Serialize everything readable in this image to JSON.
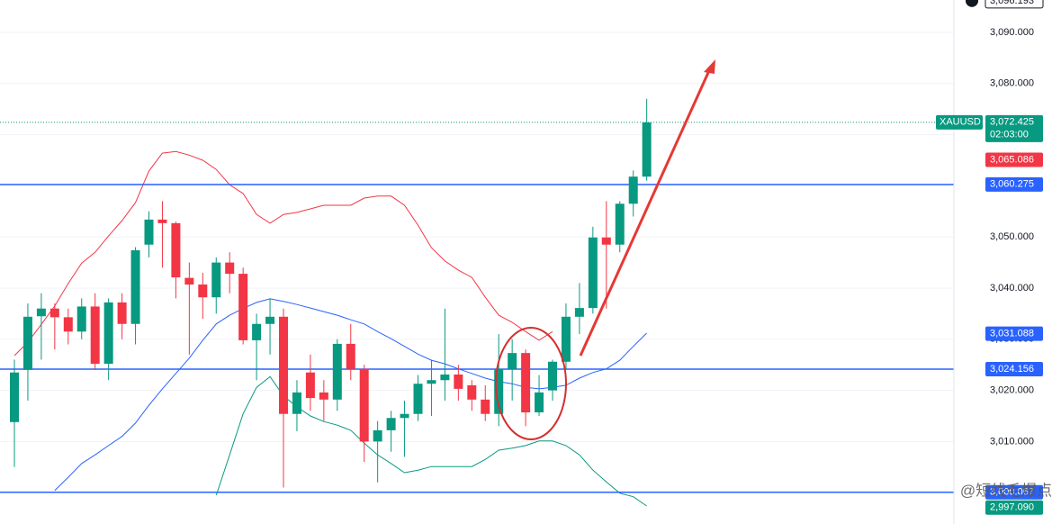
{
  "chart_data": {
    "type": "candlestick",
    "symbol": "XAUUSD",
    "up_color": "#089981",
    "down_color": "#f23645",
    "open": [
      3013.8,
      3024,
      3034.5,
      3036,
      3034.3,
      3031.5,
      3036.4,
      3025.2,
      3037.2,
      3033,
      3048.5,
      3053.4,
      3052.7,
      3042,
      3040.7,
      3038.2,
      3045,
      3042.8,
      3029.8,
      3033,
      3034.4,
      3015.4,
      3023.5,
      3019.6,
      3018.2,
      3029.1,
      3024.2,
      3010,
      3012.2,
      3014.6,
      3015.4,
      3021.3,
      3022,
      3023.1,
      3021,
      3018.2,
      3015.4,
      3024.2,
      3027.3,
      3015.7,
      3020,
      3025.6,
      3034.4,
      3036.1,
      3049.9,
      3048.5,
      3056.5,
      3061.8
    ],
    "high": [
      3026,
      3037,
      3039,
      3037,
      3036,
      3038,
      3039,
      3038,
      3039,
      3048,
      3055,
      3057,
      3053,
      3045,
      3043,
      3046,
      3047,
      3044,
      3035,
      3038,
      3036,
      3022,
      3027,
      3022,
      3030,
      3033,
      3025,
      3014,
      3016,
      3018,
      3023,
      3026,
      3036,
      3025,
      3022,
      3021,
      3031,
      3030,
      3028,
      3023,
      3026,
      3037,
      3041,
      3052,
      3057,
      3057,
      3063,
      3077
    ],
    "low": [
      3005,
      3018,
      3026,
      3028,
      3029,
      3030,
      3024,
      3022,
      3030,
      3029,
      3046,
      3044,
      3038,
      3027,
      3034,
      3035,
      3039,
      3029,
      3022,
      3027,
      3001,
      3012,
      3016,
      3014,
      3016,
      3022,
      3006,
      3002,
      3008,
      3007,
      3014,
      3015,
      3018,
      3018,
      3016,
      3014,
      3013,
      3018,
      3013,
      3015,
      3018,
      3024,
      3031,
      3035,
      3036,
      3047,
      3054,
      3061
    ],
    "close": [
      3023.5,
      3034.4,
      3036,
      3034.3,
      3031.5,
      3036.4,
      3025.2,
      3037.2,
      3033,
      3047.4,
      3053.4,
      3052.7,
      3042.1,
      3040.7,
      3038.2,
      3045,
      3042.8,
      3029.8,
      3033,
      3034.4,
      3015.4,
      3019.6,
      3018.5,
      3018.2,
      3029.1,
      3024.2,
      3010,
      3012.2,
      3014.6,
      3015.4,
      3021.3,
      3022,
      3023.1,
      3020.3,
      3018.2,
      3015.4,
      3024.2,
      3027.3,
      3015.7,
      3019.6,
      3025.6,
      3034.4,
      3036.1,
      3049.9,
      3048.5,
      3056.5,
      3061.8,
      3072.4
    ],
    "bands": [
      {
        "color": "#f23645",
        "values": [
          3026.8,
          3029.4,
          3032.9,
          3036.5,
          3040.9,
          3044.9,
          3047,
          3050.2,
          3053.2,
          3056.7,
          3062.9,
          3066.4,
          3066.7,
          3066,
          3065,
          3063.2,
          3060.2,
          3058.5,
          3054.4,
          3052.7,
          3054.4,
          3054.8,
          3055.5,
          3056.2,
          3056.2,
          3056.2,
          3057.6,
          3058,
          3058,
          3056.2,
          3052.3,
          3047.9,
          3045.3,
          3043.5,
          3042.1,
          3038.2,
          3034.7,
          3033.3,
          3031.5,
          3029.8,
          3031.5,
          null,
          null,
          null,
          null,
          null,
          null,
          null
        ]
      },
      {
        "color": "#2962ff",
        "values": [
          null,
          null,
          null,
          3000.4,
          3003,
          3005.7,
          3007.4,
          3009.2,
          3011,
          3013.6,
          3017.1,
          3020.3,
          3023.3,
          3026.3,
          3029.8,
          3033,
          3034.7,
          3036,
          3037.2,
          3037.9,
          3037.4,
          3036.8,
          3036.1,
          3035.4,
          3034.7,
          3033.8,
          3033,
          3031.5,
          3030.1,
          3028.6,
          3027.1,
          3025.9,
          3025.2,
          3024.2,
          3023.3,
          3022.4,
          3021.7,
          3021.3,
          3020.6,
          3020.3,
          3020.6,
          3021,
          3022.4,
          3023.5,
          3024.2,
          3025.9,
          3028.6,
          3031.2
        ]
      },
      {
        "color": "#089981",
        "values": [
          null,
          null,
          null,
          null,
          null,
          null,
          null,
          null,
          null,
          null,
          null,
          null,
          null,
          null,
          null,
          2999.5,
          3007.4,
          3015.4,
          3020.6,
          3022.7,
          3018.9,
          3016.8,
          3015,
          3013.9,
          3013.2,
          3012.2,
          3009.7,
          3007.4,
          3005.7,
          3003.9,
          3004.4,
          3005.1,
          3005.1,
          3005.1,
          3005.1,
          3006.5,
          3008.3,
          3008.7,
          3009.2,
          3010.1,
          3010.1,
          3009.2,
          3007.4,
          3004.4,
          3002.1,
          2999.9,
          2999.2,
          2997.4
        ]
      }
    ],
    "hlines": [
      {
        "value": 3060.275,
        "color": "#2962ff"
      },
      {
        "value": 3024.156,
        "color": "#2962ff"
      },
      {
        "value": 3000.067,
        "color": "#2962ff"
      }
    ],
    "last_price_line": {
      "value": 3072.425,
      "color": "#089981"
    },
    "price_labels": [
      {
        "value": 3096.193,
        "label": "3,096.193",
        "color": "#ffffff"
      },
      {
        "value": 3072.425,
        "label": "3,072.425",
        "sub": "02:03:00",
        "color": "#089981"
      },
      {
        "value": 3065.086,
        "label": "3,065.086",
        "color": "#f23645"
      },
      {
        "value": 3060.275,
        "label": "3,060.275",
        "color": "#2962ff"
      },
      {
        "value": 3031.088,
        "label": "3,031.088",
        "color": "#2962ff"
      },
      {
        "value": 3024.156,
        "label": "3,024.156",
        "color": "#2962ff"
      },
      {
        "value": 3000.067,
        "label": "3,000.067",
        "color": "#2962ff"
      },
      {
        "value": 2997.09,
        "label": "2,997.090",
        "color": "#089981"
      }
    ],
    "watermark": "@短线毛爆点",
    "ylim": [
      2993.87,
      3096.34
    ],
    "yticks": [
      {
        "value": 3010,
        "label": "3,010.000"
      },
      {
        "value": 3020,
        "label": "3,020.000"
      },
      {
        "value": 3030,
        "label": "3,030.000"
      },
      {
        "value": 3040,
        "label": "3,040.000"
      },
      {
        "value": 3050,
        "label": "3,050.000"
      },
      {
        "value": 3060,
        "label": "3,060.000"
      },
      {
        "value": 3070,
        "label": "3,070.000"
      },
      {
        "value": 3080,
        "label": "3,080.000"
      },
      {
        "value": 3090,
        "label": "3,090.000"
      }
    ],
    "grid": true
  }
}
